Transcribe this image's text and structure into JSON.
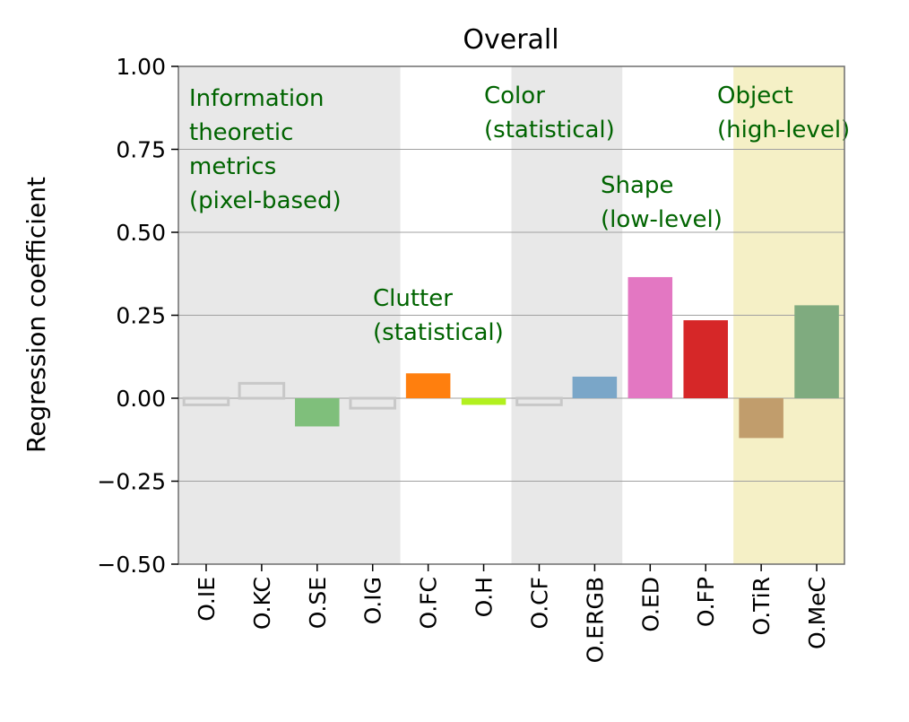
{
  "chart_data": {
    "type": "bar",
    "title": "Overall",
    "xlabel": "",
    "ylabel": "Regression coefficient",
    "ylim": [
      -0.5,
      1.0
    ],
    "yticks": [
      1.0,
      0.75,
      0.5,
      0.25,
      0.0,
      -0.25,
      -0.5
    ],
    "ytick_labels": [
      "1.00",
      "0.75",
      "0.50",
      "0.25",
      "0.00",
      "−0.25",
      "−0.50"
    ],
    "grid": "horizontal",
    "categories": [
      "O.IE",
      "O.KC",
      "O.SE",
      "O.IG",
      "O.FC",
      "O.H",
      "O.CF",
      "O.ERGB",
      "O.ED",
      "O.FP",
      "O.TiR",
      "O.MeC"
    ],
    "values": [
      -0.02,
      0.045,
      -0.085,
      -0.03,
      0.075,
      -0.02,
      -0.02,
      0.065,
      0.365,
      0.235,
      -0.12,
      0.28
    ],
    "bar_colors": [
      "none",
      "none",
      "#7fbf7b",
      "none",
      "#ff7f0e",
      "#b2f01e",
      "none",
      "#7aa6c8",
      "#e377c2",
      "#d62728",
      "#c19d6c",
      "#7fab7f"
    ],
    "outline_color": "#c8c8c8",
    "groups": [
      {
        "label_lines": [
          "Information",
          "theoretic",
          "metrics",
          "(pixel-based)"
        ],
        "start": 0,
        "end": 3,
        "shade": "#e8e8e8"
      },
      {
        "label_lines": [
          "Clutter",
          "(statistical)"
        ],
        "start": 4,
        "end": 5,
        "shade": "#ffffff"
      },
      {
        "label_lines": [
          "Color",
          "(statistical)"
        ],
        "start": 6,
        "end": 7,
        "shade": "#e8e8e8"
      },
      {
        "label_lines": [
          "Shape",
          "(low-level)"
        ],
        "start": 8,
        "end": 9,
        "shade": "#ffffff"
      },
      {
        "label_lines": [
          "Object",
          "(high-level)"
        ],
        "start": 10,
        "end": 11,
        "shade": "#f5f0c6"
      }
    ],
    "annotation_color": "#006400"
  }
}
